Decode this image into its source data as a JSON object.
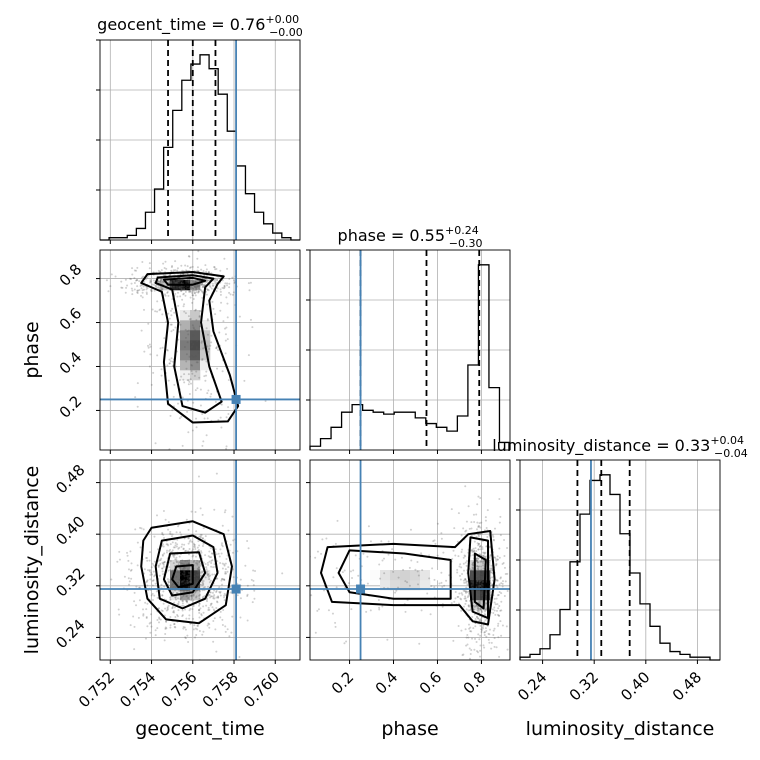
{
  "chart_data": {
    "type": "corner",
    "parameters": [
      "geocent_time",
      "phase",
      "luminosity_distance"
    ],
    "titles": [
      {
        "param": "geocent_time",
        "text": "geocent_time = 0.76",
        "plus": "+0.00",
        "minus": "−0.00"
      },
      {
        "param": "phase",
        "text": "phase = 0.55",
        "plus": "+0.24",
        "minus": "−0.30"
      },
      {
        "param": "luminosity_distance",
        "text": "luminosity_distance = 0.33",
        "plus": "+0.04",
        "minus": "−0.04"
      }
    ],
    "ranges": {
      "geocent_time": [
        0.7515,
        0.7612
      ],
      "phase": [
        0.02,
        0.93
      ],
      "luminosity_distance": [
        0.205,
        0.515
      ]
    },
    "ticks": {
      "geocent_time": [
        0.752,
        0.754,
        0.756,
        0.758,
        0.76
      ],
      "phase": [
        0.2,
        0.4,
        0.6,
        0.8
      ],
      "luminosity_distance": [
        0.24,
        0.32,
        0.4,
        0.48
      ]
    },
    "tick_labels": {
      "geocent_time": [
        "0.752",
        "0.754",
        "0.756",
        "0.758",
        "0.760"
      ],
      "phase": [
        "0.2",
        "0.4",
        "0.6",
        "0.8"
      ],
      "luminosity_distance": [
        "0.24",
        "0.32",
        "0.40",
        "0.48"
      ]
    },
    "truths": {
      "geocent_time": 0.7581,
      "phase": 0.25,
      "luminosity_distance": 0.315
    },
    "quantiles": {
      "geocent_time": [
        0.7548,
        0.756,
        0.7571
      ],
      "phase": [
        0.25,
        0.55,
        0.79
      ],
      "luminosity_distance": [
        0.294,
        0.331,
        0.375
      ]
    },
    "hist_1d": {
      "geocent_time": {
        "range": [
          0.7515,
          0.7612
        ],
        "counts": [
          0,
          1,
          1,
          2,
          5,
          12,
          22,
          40,
          56,
          69,
          76,
          80,
          74,
          63,
          47,
          32,
          20,
          12,
          7,
          3,
          1,
          0
        ]
      },
      "phase": {
        "range": [
          0.02,
          0.93
        ],
        "counts": [
          2,
          6,
          12,
          20,
          24,
          21,
          20,
          19,
          20,
          20,
          17,
          14,
          12,
          10,
          18,
          45,
          98,
          33,
          4
        ]
      },
      "luminosity_distance": {
        "range": [
          0.205,
          0.515
        ],
        "counts": [
          1,
          2,
          4,
          9,
          18,
          35,
          52,
          64,
          66,
          59,
          45,
          31,
          20,
          12,
          6,
          3,
          2,
          1,
          1,
          0
        ]
      }
    },
    "hist_2d": [
      {
        "x": "geocent_time",
        "y": "phase",
        "peaks": [
          {
            "x": 0.7554,
            "y": 0.785,
            "sx": 0.0006,
            "sy": 0.016,
            "w": 1.0
          },
          {
            "x": 0.756,
            "y": 0.5,
            "sx": 0.0006,
            "sy": 0.13,
            "w": 0.55
          }
        ],
        "contours": [
          [
            [
              0.7538,
              0.82
            ],
            [
              0.756,
              0.83
            ],
            [
              0.7575,
              0.81
            ],
            [
              0.7572,
              0.775
            ],
            [
              0.7568,
              0.7
            ],
            [
              0.757,
              0.56
            ],
            [
              0.7578,
              0.36
            ],
            [
              0.7582,
              0.22
            ],
            [
              0.7577,
              0.15
            ],
            [
              0.756,
              0.145
            ],
            [
              0.7548,
              0.23
            ],
            [
              0.7546,
              0.42
            ],
            [
              0.7548,
              0.6
            ],
            [
              0.7545,
              0.74
            ],
            [
              0.7535,
              0.78
            ]
          ],
          [
            [
              0.7543,
              0.805
            ],
            [
              0.756,
              0.815
            ],
            [
              0.757,
              0.8
            ],
            [
              0.7566,
              0.76
            ],
            [
              0.7564,
              0.6
            ],
            [
              0.7568,
              0.4
            ],
            [
              0.7574,
              0.24
            ],
            [
              0.7566,
              0.19
            ],
            [
              0.7555,
              0.22
            ],
            [
              0.7551,
              0.4
            ],
            [
              0.7553,
              0.6
            ],
            [
              0.755,
              0.75
            ],
            [
              0.7542,
              0.78
            ]
          ],
          [
            [
              0.7546,
              0.795
            ],
            [
              0.756,
              0.803
            ],
            [
              0.7566,
              0.79
            ],
            [
              0.756,
              0.772
            ],
            [
              0.7548,
              0.772
            ]
          ]
        ]
      },
      {
        "x": "geocent_time",
        "y": "luminosity_distance",
        "peaks": [
          {
            "x": 0.7557,
            "y": 0.33,
            "sx": 0.00065,
            "sy": 0.022,
            "w": 1.0
          }
        ],
        "contours": [
          [
            [
              0.754,
              0.41
            ],
            [
              0.756,
              0.42
            ],
            [
              0.7575,
              0.4
            ],
            [
              0.7579,
              0.35
            ],
            [
              0.7576,
              0.29
            ],
            [
              0.7563,
              0.262
            ],
            [
              0.7547,
              0.268
            ],
            [
              0.7538,
              0.3
            ],
            [
              0.7535,
              0.35
            ],
            [
              0.7536,
              0.39
            ]
          ],
          [
            [
              0.7545,
              0.39
            ],
            [
              0.756,
              0.398
            ],
            [
              0.757,
              0.38
            ],
            [
              0.7572,
              0.34
            ],
            [
              0.7566,
              0.3
            ],
            [
              0.7555,
              0.285
            ],
            [
              0.7544,
              0.3
            ],
            [
              0.7542,
              0.35
            ]
          ],
          [
            [
              0.7549,
              0.37
            ],
            [
              0.7563,
              0.372
            ],
            [
              0.7566,
              0.34
            ],
            [
              0.756,
              0.31
            ],
            [
              0.755,
              0.305
            ],
            [
              0.7546,
              0.33
            ]
          ],
          [
            [
              0.7552,
              0.35
            ],
            [
              0.756,
              0.352
            ],
            [
              0.756,
              0.323
            ],
            [
              0.7553,
              0.318
            ],
            [
              0.755,
              0.33
            ]
          ]
        ]
      },
      {
        "x": "phase",
        "y": "luminosity_distance",
        "peaks": [
          {
            "x": 0.795,
            "y": 0.32,
            "sx": 0.025,
            "sy": 0.025,
            "w": 1.0
          },
          {
            "x": 0.45,
            "y": 0.33,
            "sx": 0.2,
            "sy": 0.025,
            "w": 0.35
          }
        ],
        "contours": [
          [
            [
              0.1,
              0.38
            ],
            [
              0.4,
              0.385
            ],
            [
              0.68,
              0.38
            ],
            [
              0.74,
              0.4
            ],
            [
              0.84,
              0.405
            ],
            [
              0.86,
              0.33
            ],
            [
              0.83,
              0.26
            ],
            [
              0.76,
              0.265
            ],
            [
              0.7,
              0.29
            ],
            [
              0.4,
              0.29
            ],
            [
              0.12,
              0.295
            ],
            [
              0.07,
              0.34
            ]
          ],
          [
            [
              0.2,
              0.375
            ],
            [
              0.45,
              0.37
            ],
            [
              0.66,
              0.36
            ],
            [
              0.66,
              0.3
            ],
            [
              0.4,
              0.3
            ],
            [
              0.2,
              0.31
            ],
            [
              0.15,
              0.34
            ]
          ],
          [
            [
              0.75,
              0.395
            ],
            [
              0.83,
              0.39
            ],
            [
              0.83,
              0.27
            ],
            [
              0.76,
              0.28
            ],
            [
              0.74,
              0.34
            ]
          ],
          [
            [
              0.77,
              0.37
            ],
            [
              0.82,
              0.36
            ],
            [
              0.81,
              0.285
            ],
            [
              0.77,
              0.295
            ]
          ]
        ]
      }
    ],
    "colors": {
      "truth": "#4682b4",
      "contour": "#000000",
      "hist": "#000000",
      "grid": "#b0b0b0"
    },
    "grid": true
  }
}
